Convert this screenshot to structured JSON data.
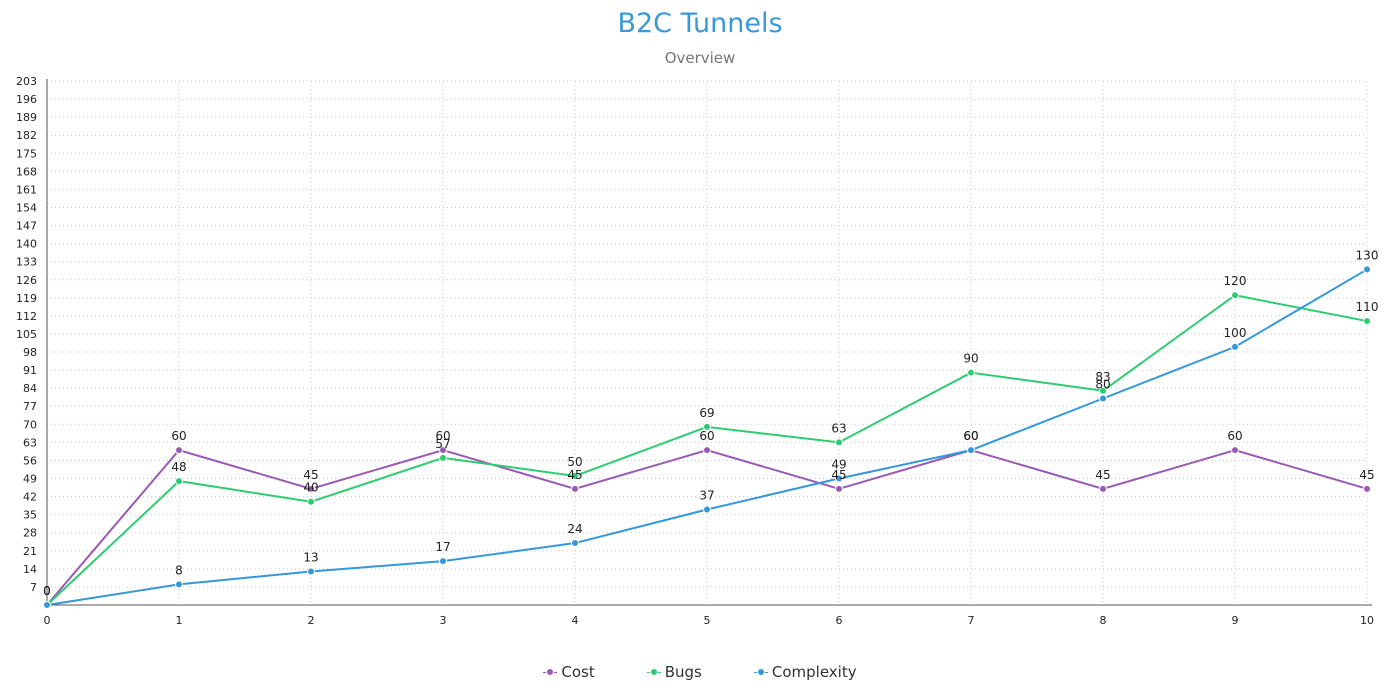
{
  "chart_data": {
    "type": "line",
    "title": "B2C Tunnels",
    "subtitle": "Overview",
    "x": [
      0,
      1,
      2,
      3,
      4,
      5,
      6,
      7,
      8,
      9,
      10
    ],
    "y_ticks": [
      7,
      14,
      21,
      28,
      35,
      42,
      49,
      56,
      63,
      70,
      77,
      84,
      91,
      98,
      105,
      112,
      119,
      126,
      133,
      140,
      147,
      154,
      161,
      168,
      175,
      182,
      189,
      196,
      203
    ],
    "ylim": [
      0,
      203
    ],
    "xlim": [
      0,
      10
    ],
    "grid": true,
    "legend_position": "bottom-center",
    "series": [
      {
        "name": "Cost",
        "color": "#9b59b6",
        "values": [
          0,
          60,
          45,
          60,
          45,
          60,
          45,
          60,
          45,
          60,
          45
        ]
      },
      {
        "name": "Bugs",
        "color": "#2ecc71",
        "values": [
          0,
          48,
          40,
          57,
          50,
          69,
          63,
          90,
          83,
          120,
          110
        ]
      },
      {
        "name": "Complexity",
        "color": "#3498db",
        "values": [
          0,
          8,
          13,
          17,
          24,
          37,
          49,
          60,
          80,
          100,
          130
        ]
      }
    ]
  }
}
